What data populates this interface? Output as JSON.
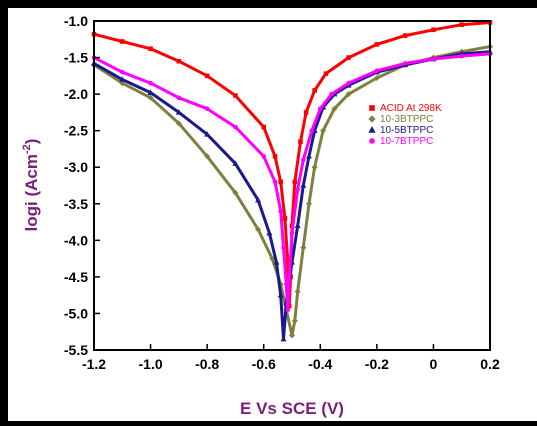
{
  "chart_data": {
    "type": "line",
    "title": "",
    "xlabel": "E Vs SCE (V)",
    "ylabel_main": "logi (Acm",
    "ylabel_sup": "-2",
    "ylabel_close": ")",
    "xlim": [
      -1.2,
      0.2
    ],
    "ylim": [
      -5.5,
      -1.0
    ],
    "x_ticks": [
      -1.2,
      -1.0,
      -0.8,
      -0.6,
      -0.4,
      -0.2,
      0,
      0.2
    ],
    "x_tick_labels": [
      "-1.2",
      "-1.0",
      "-0.8",
      "-0.6",
      "-0.4",
      "-0.2",
      "0",
      "0.2"
    ],
    "y_ticks": [
      -1.0,
      -1.5,
      -2.0,
      -2.5,
      -3.0,
      -3.5,
      -4.0,
      -4.5,
      -5.0,
      -5.5
    ],
    "y_tick_labels": [
      "-1.0",
      "-1.5",
      "-2.0",
      "-2.5",
      "-3.0",
      "-3.5",
      "-4.0",
      "-4.5",
      "-5.0",
      "-5.5"
    ],
    "grid": false,
    "legend_position": "right",
    "label_color": "#7a1f7a",
    "series": [
      {
        "name": "ACID At 298K",
        "color": "#ff0000",
        "marker": "square",
        "points": [
          [
            -1.2,
            -1.18
          ],
          [
            -1.1,
            -1.28
          ],
          [
            -1.0,
            -1.38
          ],
          [
            -0.9,
            -1.55
          ],
          [
            -0.8,
            -1.75
          ],
          [
            -0.7,
            -2.02
          ],
          [
            -0.6,
            -2.45
          ],
          [
            -0.56,
            -2.85
          ],
          [
            -0.54,
            -3.2
          ],
          [
            -0.525,
            -3.7
          ],
          [
            -0.515,
            -4.3
          ],
          [
            -0.51,
            -4.9
          ],
          [
            -0.505,
            -4.5
          ],
          [
            -0.5,
            -3.8
          ],
          [
            -0.49,
            -3.2
          ],
          [
            -0.47,
            -2.65
          ],
          [
            -0.45,
            -2.25
          ],
          [
            -0.42,
            -1.95
          ],
          [
            -0.38,
            -1.72
          ],
          [
            -0.3,
            -1.5
          ],
          [
            -0.2,
            -1.32
          ],
          [
            -0.1,
            -1.2
          ],
          [
            0.0,
            -1.12
          ],
          [
            0.1,
            -1.05
          ],
          [
            0.2,
            -1.02
          ]
        ]
      },
      {
        "name": "10-3BTPPC",
        "color": "#7f7f40",
        "marker": "diamond",
        "points": [
          [
            -1.2,
            -1.6
          ],
          [
            -1.1,
            -1.85
          ],
          [
            -1.0,
            -2.05
          ],
          [
            -0.9,
            -2.4
          ],
          [
            -0.8,
            -2.85
          ],
          [
            -0.7,
            -3.35
          ],
          [
            -0.62,
            -3.85
          ],
          [
            -0.57,
            -4.25
          ],
          [
            -0.54,
            -4.6
          ],
          [
            -0.52,
            -4.95
          ],
          [
            -0.5,
            -5.3
          ],
          [
            -0.49,
            -5.1
          ],
          [
            -0.48,
            -4.7
          ],
          [
            -0.46,
            -4.1
          ],
          [
            -0.44,
            -3.5
          ],
          [
            -0.42,
            -3.0
          ],
          [
            -0.39,
            -2.5
          ],
          [
            -0.35,
            -2.2
          ],
          [
            -0.3,
            -2.0
          ],
          [
            -0.2,
            -1.78
          ],
          [
            -0.1,
            -1.6
          ],
          [
            0.0,
            -1.5
          ],
          [
            0.1,
            -1.42
          ],
          [
            0.2,
            -1.35
          ]
        ]
      },
      {
        "name": "10-5BTPPC",
        "color": "#1a1a8c",
        "marker": "triangle",
        "points": [
          [
            -1.2,
            -1.58
          ],
          [
            -1.1,
            -1.8
          ],
          [
            -1.0,
            -1.98
          ],
          [
            -0.9,
            -2.25
          ],
          [
            -0.8,
            -2.55
          ],
          [
            -0.7,
            -2.95
          ],
          [
            -0.62,
            -3.45
          ],
          [
            -0.58,
            -3.9
          ],
          [
            -0.555,
            -4.3
          ],
          [
            -0.54,
            -4.75
          ],
          [
            -0.53,
            -5.35
          ],
          [
            -0.52,
            -4.85
          ],
          [
            -0.5,
            -4.3
          ],
          [
            -0.48,
            -3.8
          ],
          [
            -0.46,
            -3.25
          ],
          [
            -0.44,
            -2.85
          ],
          [
            -0.42,
            -2.5
          ],
          [
            -0.39,
            -2.18
          ],
          [
            -0.35,
            -2.0
          ],
          [
            -0.3,
            -1.88
          ],
          [
            -0.2,
            -1.7
          ],
          [
            -0.1,
            -1.6
          ],
          [
            0.0,
            -1.52
          ],
          [
            0.1,
            -1.45
          ],
          [
            0.2,
            -1.42
          ]
        ]
      },
      {
        "name": "10-7BTPPC",
        "color": "#ff00ff",
        "marker": "circle",
        "points": [
          [
            -1.2,
            -1.5
          ],
          [
            -1.1,
            -1.7
          ],
          [
            -1.0,
            -1.85
          ],
          [
            -0.9,
            -2.05
          ],
          [
            -0.8,
            -2.2
          ],
          [
            -0.7,
            -2.45
          ],
          [
            -0.6,
            -2.85
          ],
          [
            -0.56,
            -3.2
          ],
          [
            -0.54,
            -3.6
          ],
          [
            -0.53,
            -4.1
          ],
          [
            -0.52,
            -4.6
          ],
          [
            -0.515,
            -4.95
          ],
          [
            -0.51,
            -4.55
          ],
          [
            -0.5,
            -3.9
          ],
          [
            -0.48,
            -3.3
          ],
          [
            -0.46,
            -2.9
          ],
          [
            -0.43,
            -2.5
          ],
          [
            -0.4,
            -2.2
          ],
          [
            -0.36,
            -2.0
          ],
          [
            -0.3,
            -1.85
          ],
          [
            -0.2,
            -1.68
          ],
          [
            -0.1,
            -1.58
          ],
          [
            0.0,
            -1.52
          ],
          [
            0.1,
            -1.48
          ],
          [
            0.2,
            -1.45
          ]
        ]
      }
    ]
  }
}
